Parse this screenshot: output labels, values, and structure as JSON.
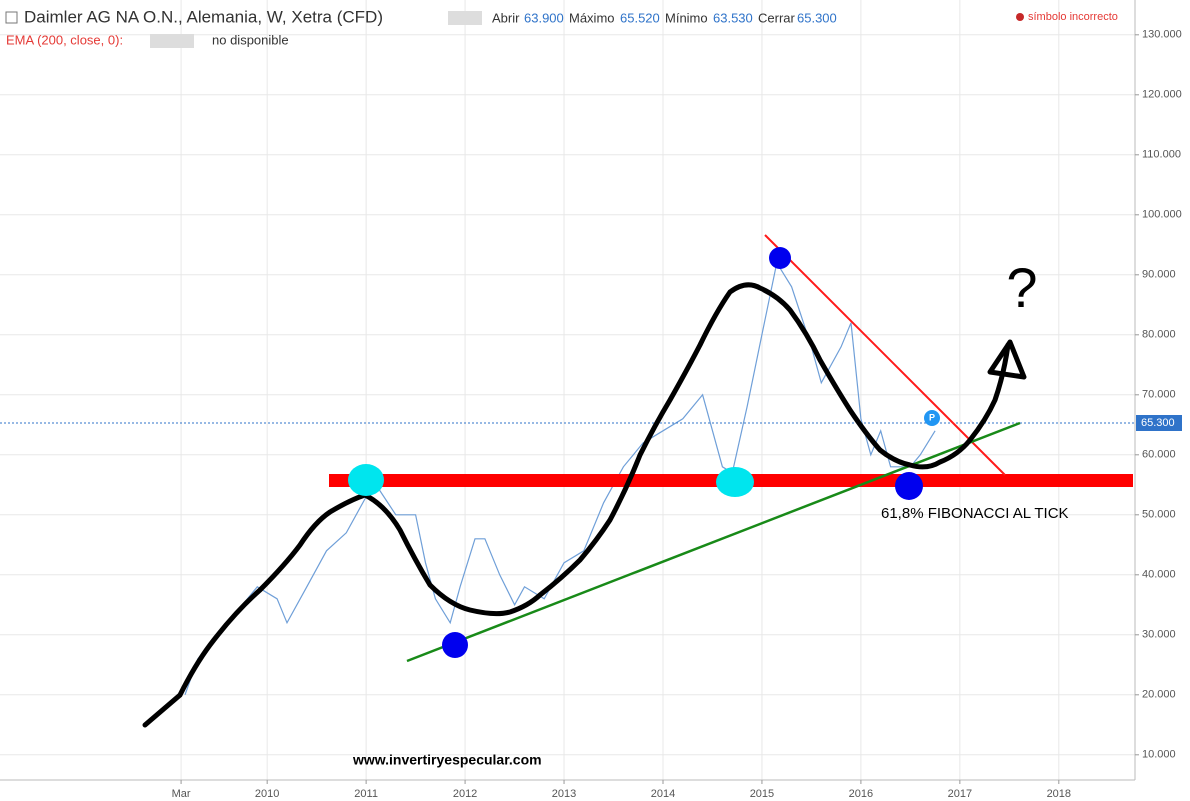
{
  "header": {
    "title": "Daimler AG NA O.N., Alemania, W, Xetra (CFD)",
    "open_label": "Abrir",
    "open": "63.900",
    "high_label": "Máximo",
    "high": "65.520",
    "low_label": "Mínimo",
    "low": "63.530",
    "close_label": "Cerrar",
    "close": "65.300",
    "indicator": "EMA (200, close, 0):",
    "indicator_status": "no disponible",
    "warning": "símbolo incorrecto"
  },
  "annotations": {
    "fibonacci": "61,8% FIBONACCI AL TICK",
    "question": "?",
    "website": "www.invertiryespecular.com"
  },
  "chart_data": {
    "type": "line",
    "x": [
      2009.17,
      2009.3,
      2009.5,
      2009.7,
      2009.9,
      2010.1,
      2010.2,
      2010.4,
      2010.6,
      2010.8,
      2011.0,
      2011.1,
      2011.3,
      2011.5,
      2011.6,
      2011.7,
      2011.85,
      2011.95,
      2012.1,
      2012.2,
      2012.35,
      2012.5,
      2012.6,
      2012.8,
      2013.0,
      2013.2,
      2013.4,
      2013.6,
      2013.8,
      2014.0,
      2014.2,
      2014.4,
      2014.5,
      2014.6,
      2014.7,
      2014.85,
      2015.0,
      2015.15,
      2015.3,
      2015.5,
      2015.6,
      2015.8,
      2015.9,
      2016.0,
      2016.1,
      2016.2,
      2016.3,
      2016.5,
      2016.6,
      2016.75
    ],
    "series": [
      {
        "name": "Daimler AG",
        "color": "#6f9fd8",
        "values": [
          20,
          26,
          30,
          34,
          38,
          36,
          32,
          38,
          44,
          47,
          53,
          55,
          50,
          50,
          42,
          36,
          32,
          38,
          46,
          46,
          40,
          35,
          38,
          36,
          42,
          44,
          52,
          58,
          62,
          64,
          66,
          70,
          64,
          58,
          57,
          68,
          80,
          92,
          88,
          78,
          72,
          78,
          82,
          66,
          60,
          64,
          58,
          58,
          60,
          64
        ]
      }
    ],
    "last_price": {
      "value": 65.3,
      "label": "65.300"
    },
    "xlim": [
      2007.3,
      2018.77
    ],
    "xticks": [
      {
        "value": 2009.13,
        "label": "Mar"
      },
      2010,
      2011,
      2012,
      2013,
      2014,
      2015,
      2016,
      2017,
      2018
    ],
    "ylim": [
      5.8,
      135.8
    ],
    "yticks": [
      {
        "value": 10,
        "label": "10.000"
      },
      {
        "value": 20,
        "label": "20.000"
      },
      {
        "value": 30,
        "label": "30.000"
      },
      {
        "value": 40,
        "label": "40.000"
      },
      {
        "value": 50,
        "label": "50.000"
      },
      {
        "value": 60,
        "label": "60.000"
      },
      {
        "value": 70,
        "label": "70.000"
      },
      {
        "value": 80,
        "label": "80.000"
      },
      {
        "value": 90,
        "label": "90.000"
      },
      {
        "value": 100,
        "label": "100.000"
      },
      {
        "value": 110,
        "label": "110.000"
      },
      {
        "value": 120,
        "label": "120.000"
      },
      {
        "value": 130,
        "label": "130.000"
      }
    ],
    "grid": true
  }
}
